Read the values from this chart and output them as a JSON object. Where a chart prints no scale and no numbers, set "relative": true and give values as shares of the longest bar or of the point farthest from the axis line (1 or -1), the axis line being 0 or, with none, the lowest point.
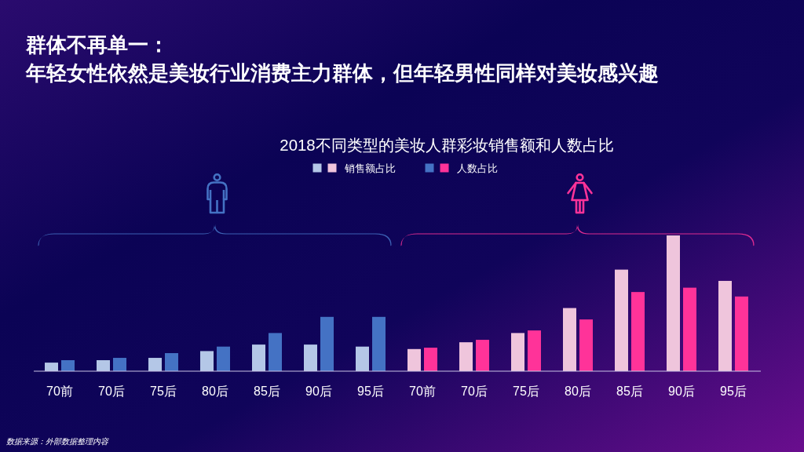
{
  "chart_data": {
    "type": "bar",
    "title": "群体不再单一：",
    "subtitle": "年轻女性依然是美妆行业消费主力群体，但年轻男性同样对美妆感兴趣",
    "categories": [
      "70前",
      "70后",
      "75后",
      "80后",
      "85后",
      "90后",
      "95后",
      "70前",
      "70后",
      "75后",
      "80后",
      "85后",
      "90后",
      "95后"
    ],
    "series": [
      {
        "name": "销售额占比",
        "colors": [
          "#b4c7e7",
          "#b4c7e7",
          "#b4c7e7",
          "#b4c7e7",
          "#b4c7e7",
          "#b4c7e7",
          "#b4c7e7",
          "#efc5dc",
          "#efc5dc",
          "#efc5dc",
          "#efc5dc",
          "#efc5dc",
          "#efc5dc",
          "#efc5dc"
        ],
        "values": [
          0.063,
          0.081,
          0.098,
          0.148,
          0.196,
          0.196,
          0.181,
          0.163,
          0.213,
          0.281,
          0.465,
          0.748,
          1,
          0.665
        ]
      },
      {
        "name": "人数占比",
        "colors": [
          "#4472c4",
          "#4472c4",
          "#4472c4",
          "#4472c4",
          "#4472c4",
          "#4472c4",
          "#4472c4",
          "#ff3399",
          "#ff3399",
          "#ff3399",
          "#ff3399",
          "#ff3399",
          "#ff3399",
          "#ff3399"
        ],
        "values": [
          0.081,
          0.098,
          0.133,
          0.181,
          0.281,
          0.4,
          0.4,
          0.173,
          0.231,
          0.3,
          0.381,
          0.583,
          0.615,
          0.55
        ]
      }
    ],
    "relative": true,
    "legend": "top",
    "annotations": [
      "2018不同类型的美妆人群彩妆销售额和人数占比",
      "数据来源：外部数据整理内容"
    ]
  }
}
